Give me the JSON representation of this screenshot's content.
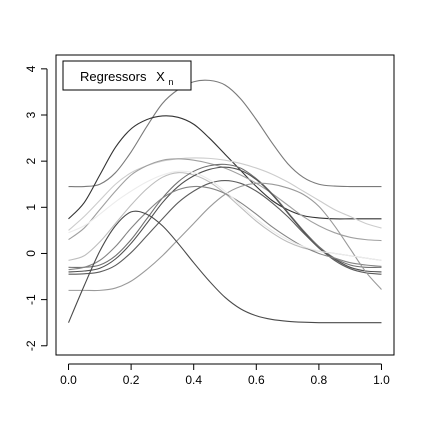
{
  "chart_data": {
    "type": "line",
    "title": "",
    "xlabel": "",
    "ylabel": "",
    "xlim": [
      -0.04,
      1.04
    ],
    "ylim": [
      -2.2,
      4.3
    ],
    "x_ticks": [
      0.0,
      0.2,
      0.4,
      0.6,
      0.8,
      1.0
    ],
    "x_tick_labels": [
      "0.0",
      "0.2",
      "0.4",
      "0.6",
      "0.8",
      "1.0"
    ],
    "y_ticks": [
      -2,
      -1,
      0,
      1,
      2,
      3,
      4
    ],
    "y_tick_labels": [
      "-2",
      "-1",
      "0",
      "1",
      "2",
      "3",
      "4"
    ],
    "grid": false,
    "legend": {
      "position": "top-left",
      "label": "Regressors",
      "symbol": "X",
      "subscript": "n"
    },
    "x": [
      0.0,
      0.05,
      0.1,
      0.15,
      0.2,
      0.25,
      0.3,
      0.35,
      0.4,
      0.45,
      0.5,
      0.55,
      0.6,
      0.65,
      0.7,
      0.75,
      0.8,
      0.85,
      0.9,
      0.95,
      1.0
    ],
    "series": [
      {
        "color": "#7a7a7a",
        "values": [
          1.45,
          1.45,
          1.5,
          1.75,
          2.2,
          2.75,
          3.25,
          3.55,
          3.72,
          3.75,
          3.65,
          3.35,
          2.9,
          2.4,
          1.95,
          1.65,
          1.5,
          1.46,
          1.45,
          1.45,
          1.45
        ]
      },
      {
        "color": "#333333",
        "values": [
          0.75,
          1.1,
          1.7,
          2.3,
          2.7,
          2.9,
          2.98,
          2.95,
          2.8,
          2.5,
          2.15,
          1.8,
          1.45,
          1.15,
          0.95,
          0.82,
          0.77,
          0.75,
          0.75,
          0.75,
          0.75
        ]
      },
      {
        "color": "#cccccc",
        "values": [
          0.5,
          0.8,
          1.15,
          1.5,
          1.75,
          1.9,
          2.0,
          2.05,
          2.07,
          2.06,
          2.02,
          1.95,
          1.85,
          1.72,
          1.55,
          1.35,
          1.15,
          0.95,
          0.8,
          0.65,
          0.55
        ]
      },
      {
        "color": "#a0a0a0",
        "values": [
          0.3,
          0.55,
          0.95,
          1.35,
          1.7,
          1.9,
          2.02,
          2.05,
          2.02,
          1.95,
          1.85,
          1.7,
          1.52,
          1.3,
          1.05,
          0.8,
          0.6,
          0.45,
          0.35,
          0.3,
          0.28
        ]
      },
      {
        "color": "#bdbdbd",
        "values": [
          -0.15,
          -0.05,
          0.25,
          0.65,
          1.05,
          1.4,
          1.65,
          1.75,
          1.7,
          1.55,
          1.3,
          1.0,
          0.7,
          0.45,
          0.25,
          0.12,
          0.05,
          0.0,
          -0.05,
          -0.1,
          -0.15
        ]
      },
      {
        "color": "#707070",
        "values": [
          -0.3,
          -0.3,
          -0.25,
          -0.05,
          0.3,
          0.75,
          1.2,
          1.55,
          1.78,
          1.9,
          1.93,
          1.85,
          1.62,
          1.3,
          0.9,
          0.5,
          0.15,
          -0.1,
          -0.25,
          -0.3,
          -0.3
        ]
      },
      {
        "color": "#505050",
        "values": [
          -0.4,
          -0.38,
          -0.32,
          -0.12,
          0.22,
          0.65,
          1.1,
          1.45,
          1.68,
          1.82,
          1.87,
          1.8,
          1.6,
          1.28,
          0.88,
          0.48,
          0.12,
          -0.12,
          -0.3,
          -0.38,
          -0.4
        ]
      },
      {
        "color": "#5c5c5c",
        "values": [
          -0.45,
          -0.44,
          -0.4,
          -0.26,
          0.02,
          0.38,
          0.75,
          1.1,
          1.35,
          1.52,
          1.58,
          1.52,
          1.35,
          1.1,
          0.8,
          0.45,
          0.12,
          -0.15,
          -0.33,
          -0.42,
          -0.45
        ]
      },
      {
        "color": "#858585",
        "values": [
          -0.35,
          -0.3,
          -0.15,
          0.15,
          0.55,
          0.9,
          1.2,
          1.38,
          1.45,
          1.42,
          1.3,
          1.1,
          0.85,
          0.58,
          0.35,
          0.15,
          0.0,
          -0.1,
          -0.2,
          -0.25,
          -0.28
        ]
      },
      {
        "color": "#9a9a9a",
        "values": [
          -0.8,
          -0.8,
          -0.8,
          -0.75,
          -0.6,
          -0.35,
          -0.05,
          0.3,
          0.65,
          1.0,
          1.28,
          1.45,
          1.52,
          1.5,
          1.42,
          1.28,
          1.02,
          0.6,
          0.1,
          -0.4,
          -0.78
        ]
      },
      {
        "color": "#ececec",
        "values": [
          0.45,
          0.6,
          0.85,
          1.12,
          1.35,
          1.55,
          1.7,
          1.78,
          1.75,
          1.6,
          1.35,
          1.05,
          0.75,
          0.5,
          0.3,
          0.15,
          0.05,
          0.0,
          -0.05,
          -0.1,
          -0.15
        ]
      },
      {
        "color": "#4a4a4a",
        "values": [
          -1.5,
          -0.7,
          0.05,
          0.6,
          0.9,
          0.85,
          0.6,
          0.22,
          -0.2,
          -0.6,
          -0.95,
          -1.2,
          -1.35,
          -1.43,
          -1.47,
          -1.49,
          -1.5,
          -1.5,
          -1.5,
          -1.5,
          -1.5
        ]
      }
    ]
  }
}
